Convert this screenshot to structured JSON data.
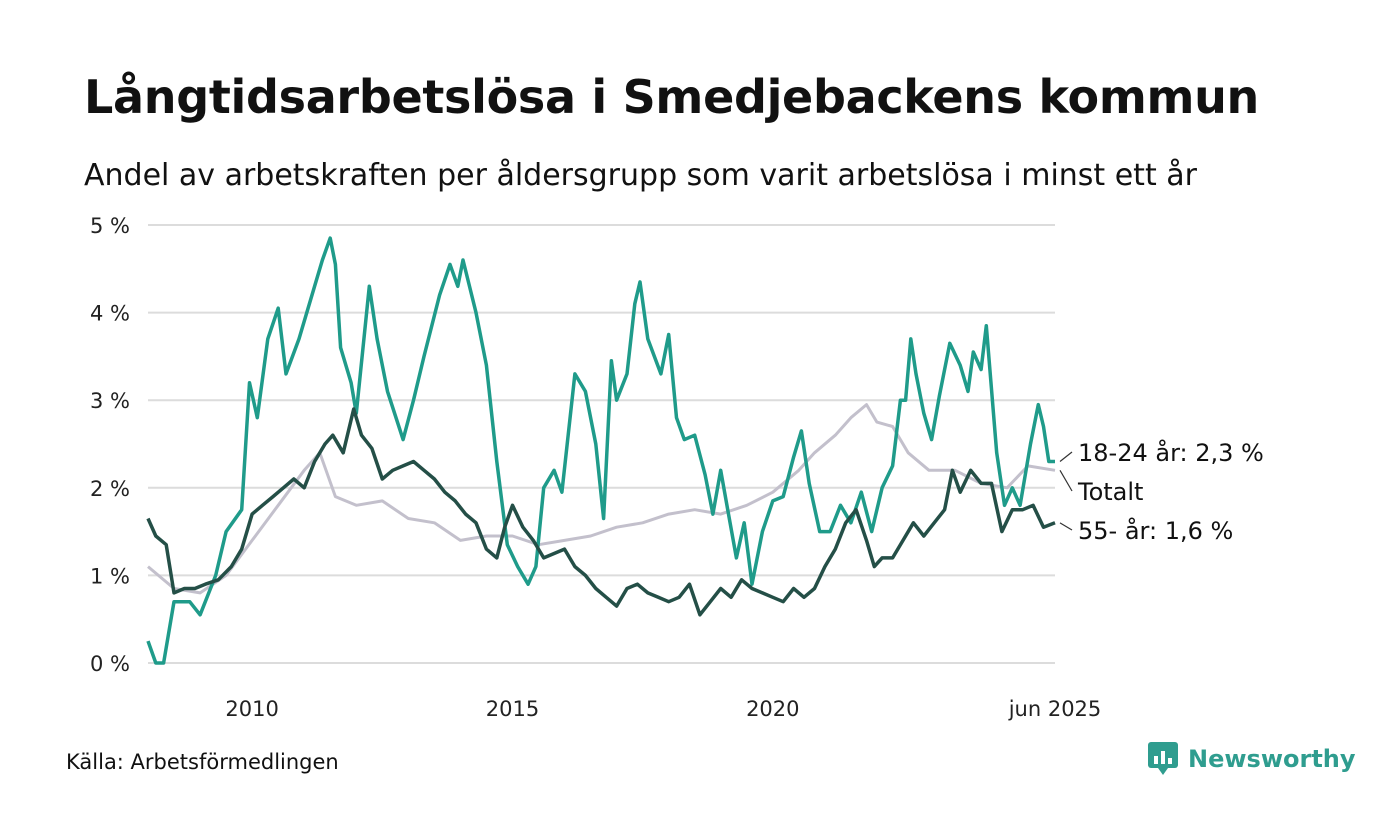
{
  "header": {
    "title": "Långtidsarbetslösa i Smedjebackens kommun",
    "subtitle": "Andel av arbetskraften per åldersgrupp som varit arbetslösa i minst ett år"
  },
  "footer": {
    "source": "Källa: Arbetsförmedlingen",
    "brand": "Newsworthy",
    "brand_icon": "newsworthy-logo-icon",
    "brand_color": "#2f9d8f"
  },
  "chart_data": {
    "type": "line",
    "x_range": [
      2008.0,
      2025.42
    ],
    "ylim": [
      0,
      5
    ],
    "yticks": [
      0,
      1,
      2,
      3,
      4,
      5
    ],
    "ytick_labels": [
      "0 %",
      "1 %",
      "2 %",
      "3 %",
      "4 %",
      "5 %"
    ],
    "xticks": [
      2010,
      2015,
      2020,
      2025.42
    ],
    "xtick_labels": [
      "2010",
      "2015",
      "2020",
      "jun 2025"
    ],
    "grid": "horizontal",
    "legend": "end-labels-right",
    "series": [
      {
        "name": "Totalt",
        "label": "Totalt",
        "color": "#c3c0cc",
        "width": 3,
        "points": [
          [
            2008.0,
            1.1
          ],
          [
            2008.5,
            0.85
          ],
          [
            2009.0,
            0.8
          ],
          [
            2009.5,
            1.0
          ],
          [
            2010.0,
            1.4
          ],
          [
            2010.5,
            1.8
          ],
          [
            2011.0,
            2.2
          ],
          [
            2011.3,
            2.4
          ],
          [
            2011.6,
            1.9
          ],
          [
            2012.0,
            1.8
          ],
          [
            2012.5,
            1.85
          ],
          [
            2013.0,
            1.65
          ],
          [
            2013.5,
            1.6
          ],
          [
            2014.0,
            1.4
          ],
          [
            2014.5,
            1.45
          ],
          [
            2015.0,
            1.45
          ],
          [
            2015.5,
            1.35
          ],
          [
            2016.0,
            1.4
          ],
          [
            2016.5,
            1.45
          ],
          [
            2017.0,
            1.55
          ],
          [
            2017.5,
            1.6
          ],
          [
            2018.0,
            1.7
          ],
          [
            2018.5,
            1.75
          ],
          [
            2019.0,
            1.7
          ],
          [
            2019.5,
            1.8
          ],
          [
            2020.0,
            1.95
          ],
          [
            2020.5,
            2.2
          ],
          [
            2020.8,
            2.4
          ],
          [
            2021.2,
            2.6
          ],
          [
            2021.5,
            2.8
          ],
          [
            2021.8,
            2.95
          ],
          [
            2022.0,
            2.75
          ],
          [
            2022.3,
            2.7
          ],
          [
            2022.6,
            2.4
          ],
          [
            2023.0,
            2.2
          ],
          [
            2023.5,
            2.2
          ],
          [
            2024.0,
            2.05
          ],
          [
            2024.5,
            2.0
          ],
          [
            2024.9,
            2.25
          ],
          [
            2025.42,
            2.2
          ]
        ]
      },
      {
        "name": "18-24 år",
        "label": "18-24 år: 2,3 %",
        "color": "#1f9b8a",
        "width": 3.5,
        "points": [
          [
            2008.0,
            0.25
          ],
          [
            2008.15,
            0.0
          ],
          [
            2008.3,
            0.0
          ],
          [
            2008.5,
            0.7
          ],
          [
            2008.8,
            0.7
          ],
          [
            2009.0,
            0.55
          ],
          [
            2009.3,
            1.0
          ],
          [
            2009.5,
            1.5
          ],
          [
            2009.8,
            1.75
          ],
          [
            2009.95,
            3.2
          ],
          [
            2010.1,
            2.8
          ],
          [
            2010.3,
            3.7
          ],
          [
            2010.5,
            4.05
          ],
          [
            2010.65,
            3.3
          ],
          [
            2010.9,
            3.7
          ],
          [
            2011.2,
            4.3
          ],
          [
            2011.35,
            4.6
          ],
          [
            2011.5,
            4.85
          ],
          [
            2011.6,
            4.55
          ],
          [
            2011.7,
            3.6
          ],
          [
            2011.9,
            3.2
          ],
          [
            2012.0,
            2.85
          ],
          [
            2012.25,
            4.3
          ],
          [
            2012.4,
            3.7
          ],
          [
            2012.6,
            3.1
          ],
          [
            2012.9,
            2.55
          ],
          [
            2013.1,
            3.0
          ],
          [
            2013.3,
            3.5
          ],
          [
            2013.6,
            4.2
          ],
          [
            2013.8,
            4.55
          ],
          [
            2013.95,
            4.3
          ],
          [
            2014.05,
            4.6
          ],
          [
            2014.3,
            4.0
          ],
          [
            2014.5,
            3.4
          ],
          [
            2014.7,
            2.3
          ],
          [
            2014.9,
            1.35
          ],
          [
            2015.1,
            1.1
          ],
          [
            2015.3,
            0.9
          ],
          [
            2015.45,
            1.1
          ],
          [
            2015.6,
            2.0
          ],
          [
            2015.8,
            2.2
          ],
          [
            2015.95,
            1.95
          ],
          [
            2016.2,
            3.3
          ],
          [
            2016.4,
            3.1
          ],
          [
            2016.6,
            2.5
          ],
          [
            2016.75,
            1.65
          ],
          [
            2016.9,
            3.45
          ],
          [
            2017.0,
            3.0
          ],
          [
            2017.2,
            3.3
          ],
          [
            2017.35,
            4.1
          ],
          [
            2017.45,
            4.35
          ],
          [
            2017.6,
            3.7
          ],
          [
            2017.85,
            3.3
          ],
          [
            2018.0,
            3.75
          ],
          [
            2018.15,
            2.8
          ],
          [
            2018.3,
            2.55
          ],
          [
            2018.5,
            2.6
          ],
          [
            2018.7,
            2.15
          ],
          [
            2018.85,
            1.7
          ],
          [
            2019.0,
            2.2
          ],
          [
            2019.15,
            1.7
          ],
          [
            2019.3,
            1.2
          ],
          [
            2019.45,
            1.6
          ],
          [
            2019.6,
            0.9
          ],
          [
            2019.8,
            1.5
          ],
          [
            2020.0,
            1.85
          ],
          [
            2020.2,
            1.9
          ],
          [
            2020.4,
            2.35
          ],
          [
            2020.55,
            2.65
          ],
          [
            2020.7,
            2.05
          ],
          [
            2020.9,
            1.5
          ],
          [
            2021.1,
            1.5
          ],
          [
            2021.3,
            1.8
          ],
          [
            2021.5,
            1.6
          ],
          [
            2021.7,
            1.95
          ],
          [
            2021.9,
            1.5
          ],
          [
            2022.1,
            2.0
          ],
          [
            2022.3,
            2.25
          ],
          [
            2022.45,
            3.0
          ],
          [
            2022.55,
            3.0
          ],
          [
            2022.65,
            3.7
          ],
          [
            2022.75,
            3.3
          ],
          [
            2022.9,
            2.85
          ],
          [
            2023.05,
            2.55
          ],
          [
            2023.2,
            3.05
          ],
          [
            2023.4,
            3.65
          ],
          [
            2023.6,
            3.4
          ],
          [
            2023.75,
            3.1
          ],
          [
            2023.85,
            3.55
          ],
          [
            2024.0,
            3.35
          ],
          [
            2024.1,
            3.85
          ],
          [
            2024.3,
            2.4
          ],
          [
            2024.45,
            1.8
          ],
          [
            2024.6,
            2.0
          ],
          [
            2024.75,
            1.8
          ],
          [
            2024.95,
            2.5
          ],
          [
            2025.1,
            2.95
          ],
          [
            2025.2,
            2.7
          ],
          [
            2025.3,
            2.3
          ],
          [
            2025.42,
            2.3
          ]
        ]
      },
      {
        "name": "55- år",
        "label": "55- år: 1,6 %",
        "color": "#244f47",
        "width": 3.5,
        "points": [
          [
            2008.0,
            1.65
          ],
          [
            2008.15,
            1.45
          ],
          [
            2008.35,
            1.35
          ],
          [
            2008.5,
            0.8
          ],
          [
            2008.7,
            0.85
          ],
          [
            2008.9,
            0.85
          ],
          [
            2009.1,
            0.9
          ],
          [
            2009.35,
            0.95
          ],
          [
            2009.6,
            1.1
          ],
          [
            2009.8,
            1.3
          ],
          [
            2010.0,
            1.7
          ],
          [
            2010.2,
            1.8
          ],
          [
            2010.4,
            1.9
          ],
          [
            2010.6,
            2.0
          ],
          [
            2010.8,
            2.1
          ],
          [
            2011.0,
            2.0
          ],
          [
            2011.2,
            2.3
          ],
          [
            2011.4,
            2.5
          ],
          [
            2011.55,
            2.6
          ],
          [
            2011.75,
            2.4
          ],
          [
            2011.95,
            2.9
          ],
          [
            2012.1,
            2.6
          ],
          [
            2012.3,
            2.45
          ],
          [
            2012.5,
            2.1
          ],
          [
            2012.7,
            2.2
          ],
          [
            2012.9,
            2.25
          ],
          [
            2013.1,
            2.3
          ],
          [
            2013.3,
            2.2
          ],
          [
            2013.5,
            2.1
          ],
          [
            2013.7,
            1.95
          ],
          [
            2013.9,
            1.85
          ],
          [
            2014.1,
            1.7
          ],
          [
            2014.3,
            1.6
          ],
          [
            2014.5,
            1.3
          ],
          [
            2014.7,
            1.2
          ],
          [
            2014.85,
            1.55
          ],
          [
            2015.0,
            1.8
          ],
          [
            2015.2,
            1.55
          ],
          [
            2015.4,
            1.4
          ],
          [
            2015.6,
            1.2
          ],
          [
            2015.8,
            1.25
          ],
          [
            2016.0,
            1.3
          ],
          [
            2016.2,
            1.1
          ],
          [
            2016.4,
            1.0
          ],
          [
            2016.6,
            0.85
          ],
          [
            2016.8,
            0.75
          ],
          [
            2017.0,
            0.65
          ],
          [
            2017.2,
            0.85
          ],
          [
            2017.4,
            0.9
          ],
          [
            2017.6,
            0.8
          ],
          [
            2017.8,
            0.75
          ],
          [
            2018.0,
            0.7
          ],
          [
            2018.2,
            0.75
          ],
          [
            2018.4,
            0.9
          ],
          [
            2018.6,
            0.55
          ],
          [
            2018.8,
            0.7
          ],
          [
            2019.0,
            0.85
          ],
          [
            2019.2,
            0.75
          ],
          [
            2019.4,
            0.95
          ],
          [
            2019.6,
            0.85
          ],
          [
            2019.8,
            0.8
          ],
          [
            2020.0,
            0.75
          ],
          [
            2020.2,
            0.7
          ],
          [
            2020.4,
            0.85
          ],
          [
            2020.6,
            0.75
          ],
          [
            2020.8,
            0.85
          ],
          [
            2021.0,
            1.1
          ],
          [
            2021.2,
            1.3
          ],
          [
            2021.4,
            1.6
          ],
          [
            2021.6,
            1.75
          ],
          [
            2021.8,
            1.4
          ],
          [
            2021.95,
            1.1
          ],
          [
            2022.1,
            1.2
          ],
          [
            2022.3,
            1.2
          ],
          [
            2022.5,
            1.4
          ],
          [
            2022.7,
            1.6
          ],
          [
            2022.9,
            1.45
          ],
          [
            2023.1,
            1.6
          ],
          [
            2023.3,
            1.75
          ],
          [
            2023.45,
            2.2
          ],
          [
            2023.6,
            1.95
          ],
          [
            2023.8,
            2.2
          ],
          [
            2024.0,
            2.05
          ],
          [
            2024.2,
            2.05
          ],
          [
            2024.4,
            1.5
          ],
          [
            2024.6,
            1.75
          ],
          [
            2024.8,
            1.75
          ],
          [
            2025.0,
            1.8
          ],
          [
            2025.2,
            1.55
          ],
          [
            2025.42,
            1.6
          ]
        ]
      }
    ]
  }
}
